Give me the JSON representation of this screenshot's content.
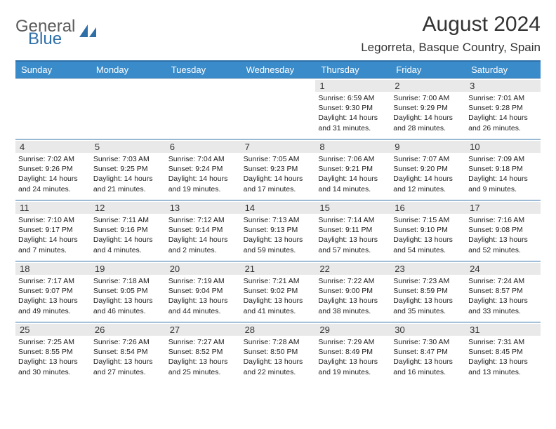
{
  "logo": {
    "text1": "General",
    "text2": "Blue",
    "accent": "#2f6fa8",
    "gray": "#5b5b5b"
  },
  "title": "August 2024",
  "location": "Legorreta, Basque Country, Spain",
  "header_bg": "#3a8bc9",
  "border_color": "#2f6fa8",
  "daynum_bg": "#e9e9e9",
  "days": [
    "Sunday",
    "Monday",
    "Tuesday",
    "Wednesday",
    "Thursday",
    "Friday",
    "Saturday"
  ],
  "weeks": [
    [
      {
        "n": "",
        "empty": true
      },
      {
        "n": "",
        "empty": true
      },
      {
        "n": "",
        "empty": true
      },
      {
        "n": "",
        "empty": true
      },
      {
        "n": "1",
        "sr": "6:59 AM",
        "ss": "9:30 PM",
        "dl": "14 hours and 31 minutes."
      },
      {
        "n": "2",
        "sr": "7:00 AM",
        "ss": "9:29 PM",
        "dl": "14 hours and 28 minutes."
      },
      {
        "n": "3",
        "sr": "7:01 AM",
        "ss": "9:28 PM",
        "dl": "14 hours and 26 minutes."
      }
    ],
    [
      {
        "n": "4",
        "sr": "7:02 AM",
        "ss": "9:26 PM",
        "dl": "14 hours and 24 minutes."
      },
      {
        "n": "5",
        "sr": "7:03 AM",
        "ss": "9:25 PM",
        "dl": "14 hours and 21 minutes."
      },
      {
        "n": "6",
        "sr": "7:04 AM",
        "ss": "9:24 PM",
        "dl": "14 hours and 19 minutes."
      },
      {
        "n": "7",
        "sr": "7:05 AM",
        "ss": "9:23 PM",
        "dl": "14 hours and 17 minutes."
      },
      {
        "n": "8",
        "sr": "7:06 AM",
        "ss": "9:21 PM",
        "dl": "14 hours and 14 minutes."
      },
      {
        "n": "9",
        "sr": "7:07 AM",
        "ss": "9:20 PM",
        "dl": "14 hours and 12 minutes."
      },
      {
        "n": "10",
        "sr": "7:09 AM",
        "ss": "9:18 PM",
        "dl": "14 hours and 9 minutes."
      }
    ],
    [
      {
        "n": "11",
        "sr": "7:10 AM",
        "ss": "9:17 PM",
        "dl": "14 hours and 7 minutes."
      },
      {
        "n": "12",
        "sr": "7:11 AM",
        "ss": "9:16 PM",
        "dl": "14 hours and 4 minutes."
      },
      {
        "n": "13",
        "sr": "7:12 AM",
        "ss": "9:14 PM",
        "dl": "14 hours and 2 minutes."
      },
      {
        "n": "14",
        "sr": "7:13 AM",
        "ss": "9:13 PM",
        "dl": "13 hours and 59 minutes."
      },
      {
        "n": "15",
        "sr": "7:14 AM",
        "ss": "9:11 PM",
        "dl": "13 hours and 57 minutes."
      },
      {
        "n": "16",
        "sr": "7:15 AM",
        "ss": "9:10 PM",
        "dl": "13 hours and 54 minutes."
      },
      {
        "n": "17",
        "sr": "7:16 AM",
        "ss": "9:08 PM",
        "dl": "13 hours and 52 minutes."
      }
    ],
    [
      {
        "n": "18",
        "sr": "7:17 AM",
        "ss": "9:07 PM",
        "dl": "13 hours and 49 minutes."
      },
      {
        "n": "19",
        "sr": "7:18 AM",
        "ss": "9:05 PM",
        "dl": "13 hours and 46 minutes."
      },
      {
        "n": "20",
        "sr": "7:19 AM",
        "ss": "9:04 PM",
        "dl": "13 hours and 44 minutes."
      },
      {
        "n": "21",
        "sr": "7:21 AM",
        "ss": "9:02 PM",
        "dl": "13 hours and 41 minutes."
      },
      {
        "n": "22",
        "sr": "7:22 AM",
        "ss": "9:00 PM",
        "dl": "13 hours and 38 minutes."
      },
      {
        "n": "23",
        "sr": "7:23 AM",
        "ss": "8:59 PM",
        "dl": "13 hours and 35 minutes."
      },
      {
        "n": "24",
        "sr": "7:24 AM",
        "ss": "8:57 PM",
        "dl": "13 hours and 33 minutes."
      }
    ],
    [
      {
        "n": "25",
        "sr": "7:25 AM",
        "ss": "8:55 PM",
        "dl": "13 hours and 30 minutes."
      },
      {
        "n": "26",
        "sr": "7:26 AM",
        "ss": "8:54 PM",
        "dl": "13 hours and 27 minutes."
      },
      {
        "n": "27",
        "sr": "7:27 AM",
        "ss": "8:52 PM",
        "dl": "13 hours and 25 minutes."
      },
      {
        "n": "28",
        "sr": "7:28 AM",
        "ss": "8:50 PM",
        "dl": "13 hours and 22 minutes."
      },
      {
        "n": "29",
        "sr": "7:29 AM",
        "ss": "8:49 PM",
        "dl": "13 hours and 19 minutes."
      },
      {
        "n": "30",
        "sr": "7:30 AM",
        "ss": "8:47 PM",
        "dl": "13 hours and 16 minutes."
      },
      {
        "n": "31",
        "sr": "7:31 AM",
        "ss": "8:45 PM",
        "dl": "13 hours and 13 minutes."
      }
    ]
  ],
  "labels": {
    "sunrise": "Sunrise:",
    "sunset": "Sunset:",
    "daylight": "Daylight:"
  }
}
